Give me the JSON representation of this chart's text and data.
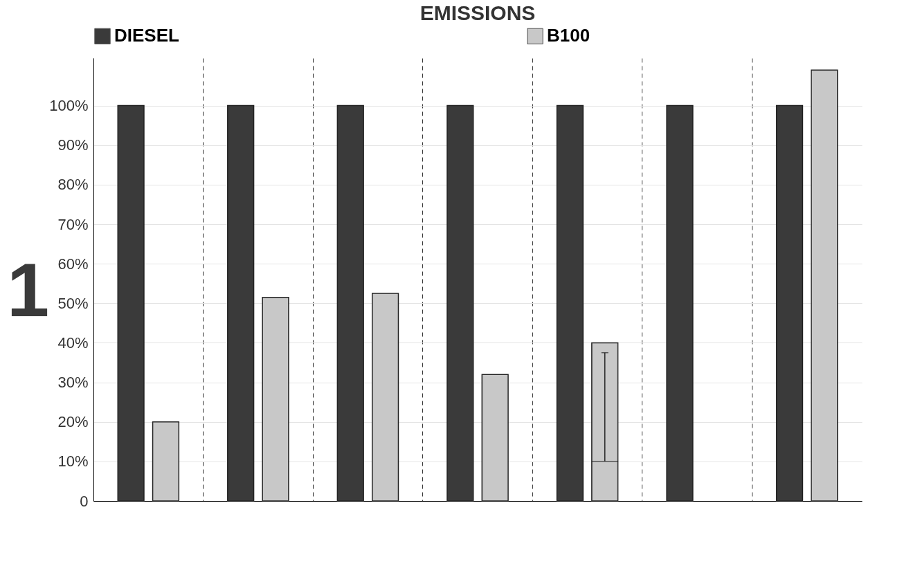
{
  "chart_data": {
    "type": "bar",
    "title": "EMISSIONS",
    "categories": [
      null,
      null,
      null,
      null,
      null,
      null,
      null
    ],
    "series": [
      {
        "name": "DIESEL",
        "color": "#3a3a3a",
        "values": [
          100,
          100,
          100,
          100,
          100,
          100,
          100
        ]
      },
      {
        "name": "B100",
        "color": "#c8c8c8",
        "values": [
          20,
          51.5,
          52.5,
          32,
          40,
          null,
          109
        ],
        "errors": [
          null,
          null,
          null,
          null,
          [
            10,
            37.5
          ],
          null,
          null
        ]
      }
    ],
    "ylim": [
      0,
      112
    ],
    "yticks": [
      0,
      {
        "value": 10,
        "label": "10%"
      },
      {
        "value": 20,
        "label": "20%"
      },
      {
        "value": 30,
        "label": "30%"
      },
      {
        "value": 40,
        "label": "40%"
      },
      {
        "value": 50,
        "label": "50%"
      },
      {
        "value": 60,
        "label": "60%"
      },
      {
        "value": 70,
        "label": "70%"
      },
      {
        "value": 80,
        "label": "80%"
      },
      {
        "value": 90,
        "label": "90%"
      },
      {
        "value": 100,
        "label": "100%"
      }
    ],
    "grid": true,
    "legend": "top",
    "annotations": [
      "1"
    ]
  }
}
